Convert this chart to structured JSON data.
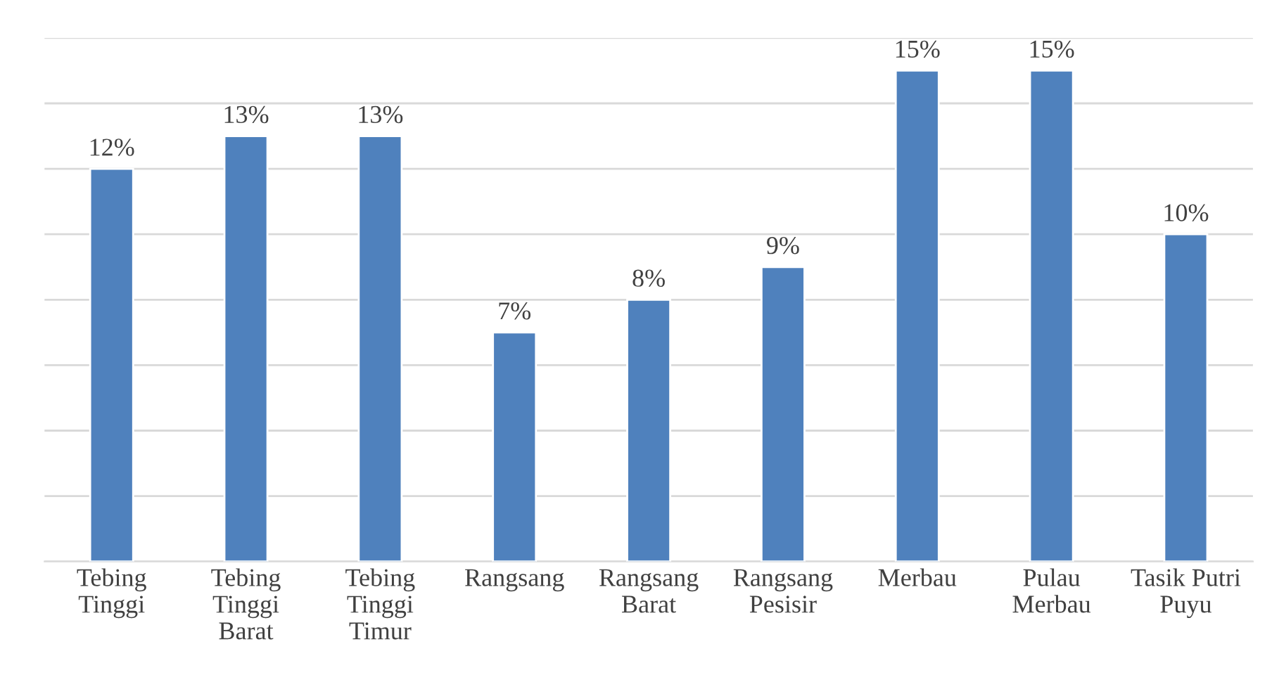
{
  "chart_data": {
    "type": "bar",
    "categories": [
      "Tebing Tinggi",
      "Tebing Tinggi Barat",
      "Tebing Tinggi Timur",
      "Rangsang",
      "Rangsang Barat",
      "Rangsang Pesisir",
      "Merbau",
      "Pulau Merbau",
      "Tasik Putri Puyu"
    ],
    "values": [
      12,
      13,
      13,
      7,
      8,
      9,
      15,
      15,
      10
    ],
    "value_labels": [
      "12%",
      "13%",
      "13%",
      "7%",
      "8%",
      "9%",
      "15%",
      "15%",
      "10%"
    ],
    "color": "#4f81bd",
    "ylim": [
      0,
      16
    ],
    "yticks": [
      {
        "value": 0,
        "label": null
      },
      {
        "value": 2,
        "label": null
      },
      {
        "value": 4,
        "label": null
      },
      {
        "value": 6,
        "label": null
      },
      {
        "value": 8,
        "label": null
      },
      {
        "value": 10,
        "label": null
      },
      {
        "value": 12,
        "label": null
      },
      {
        "value": 14,
        "label": null
      },
      {
        "value": 16,
        "label": null
      }
    ],
    "tick_labels": "x",
    "grid": "y"
  }
}
